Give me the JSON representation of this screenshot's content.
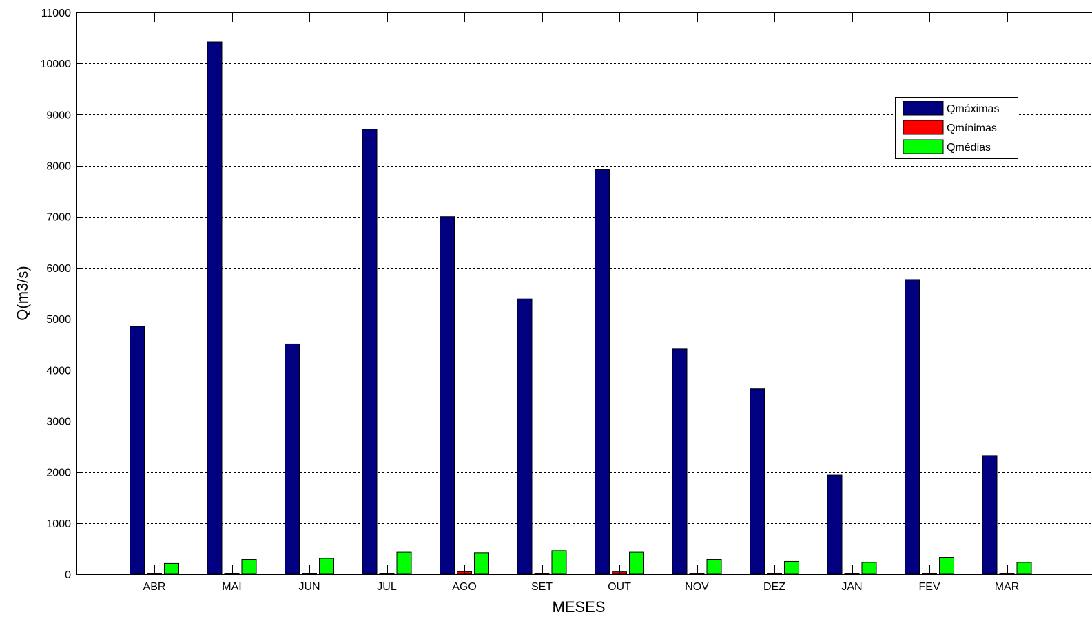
{
  "chart_data": {
    "type": "bar",
    "title": "",
    "xlabel": "MESES",
    "ylabel": "Q(m3/s)",
    "ylim": [
      0,
      11000
    ],
    "yticks": [
      0,
      1000,
      2000,
      3000,
      4000,
      5000,
      6000,
      7000,
      8000,
      9000,
      10000,
      11000
    ],
    "grid": "horizontal dashed",
    "legend_position": "top-right",
    "categories": [
      "ABR",
      "MAI",
      "JUN",
      "JUL",
      "AGO",
      "SET",
      "OUT",
      "NOV",
      "DEZ",
      "JAN",
      "FEV",
      "MAR"
    ],
    "series": [
      {
        "name": "Qmáximas",
        "color": "#000080",
        "values": [
          4850,
          10420,
          4510,
          8710,
          7000,
          5390,
          7920,
          4410,
          3630,
          1940,
          5770,
          2320
        ]
      },
      {
        "name": "Qmínimas",
        "color": "#ff0000",
        "values": [
          15,
          8,
          8,
          8,
          50,
          15,
          45,
          15,
          15,
          15,
          15,
          15
        ]
      },
      {
        "name": "Qmédias",
        "color": "#00ff00",
        "values": [
          210,
          290,
          310,
          430,
          420,
          460,
          430,
          290,
          250,
          230,
          330,
          230
        ]
      }
    ]
  }
}
